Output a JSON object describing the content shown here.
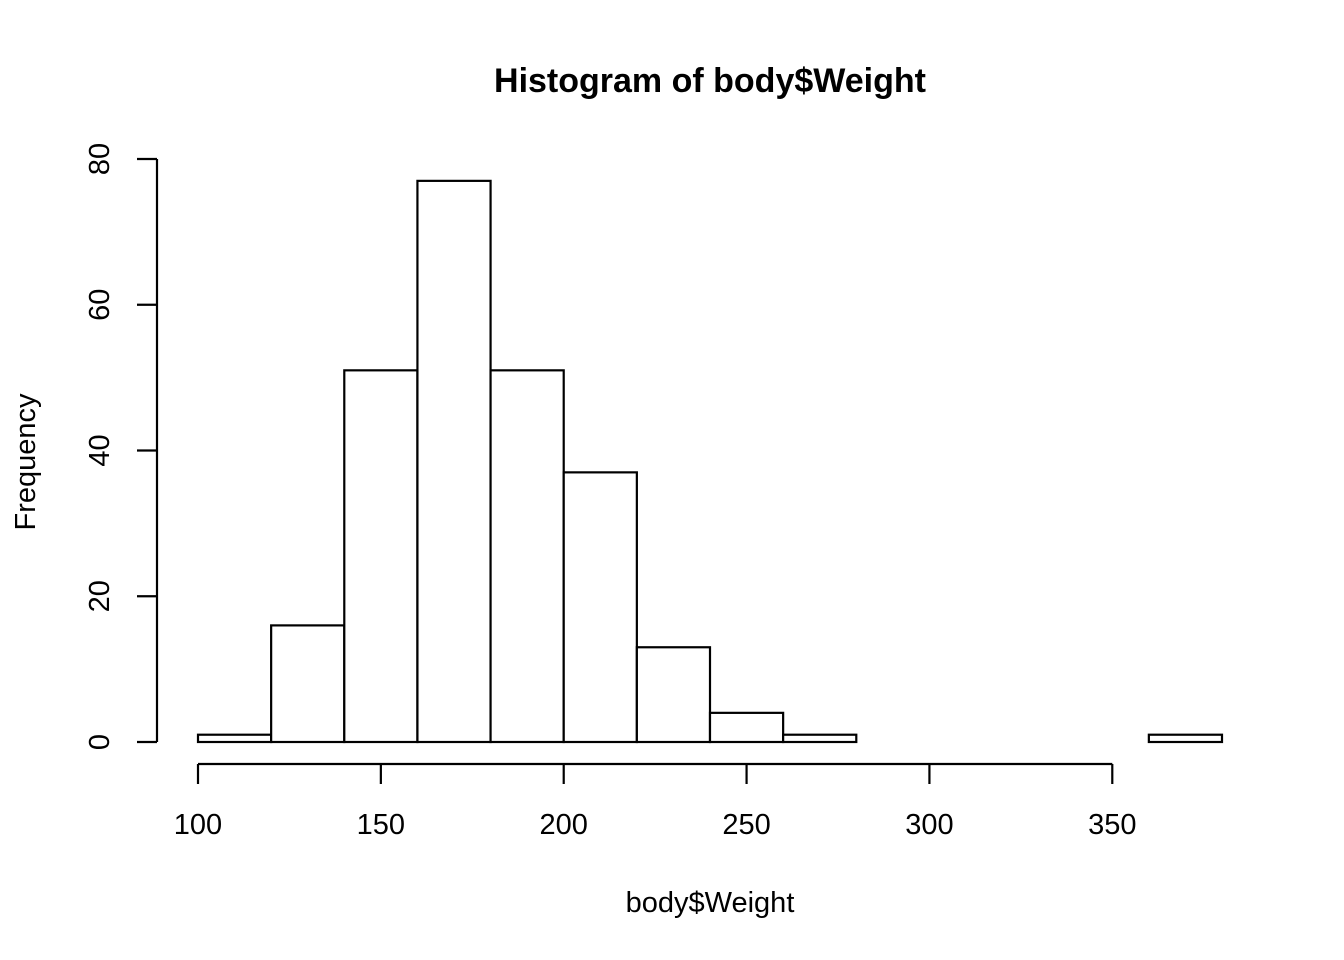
{
  "chart_data": {
    "type": "bar",
    "title": "Histogram of body$Weight",
    "xlabel": "body$Weight",
    "ylabel": "Frequency",
    "bins": [
      {
        "start": 100,
        "end": 120,
        "count": 1
      },
      {
        "start": 120,
        "end": 140,
        "count": 16
      },
      {
        "start": 140,
        "end": 160,
        "count": 51
      },
      {
        "start": 160,
        "end": 180,
        "count": 77
      },
      {
        "start": 180,
        "end": 200,
        "count": 51
      },
      {
        "start": 200,
        "end": 220,
        "count": 37
      },
      {
        "start": 220,
        "end": 240,
        "count": 13
      },
      {
        "start": 240,
        "end": 260,
        "count": 4
      },
      {
        "start": 260,
        "end": 280,
        "count": 1
      },
      {
        "start": 280,
        "end": 300,
        "count": 0
      },
      {
        "start": 300,
        "end": 320,
        "count": 0
      },
      {
        "start": 320,
        "end": 340,
        "count": 0
      },
      {
        "start": 340,
        "end": 360,
        "count": 0
      },
      {
        "start": 360,
        "end": 380,
        "count": 1
      }
    ],
    "xticks": [
      100,
      150,
      200,
      250,
      300,
      350
    ],
    "yticks": [
      0,
      20,
      40,
      60,
      80
    ],
    "xlim": [
      100,
      380
    ],
    "ylim": [
      0,
      80
    ],
    "grid": false,
    "legend": "none",
    "bar_fill": "#ffffff",
    "bar_stroke": "#000000"
  }
}
